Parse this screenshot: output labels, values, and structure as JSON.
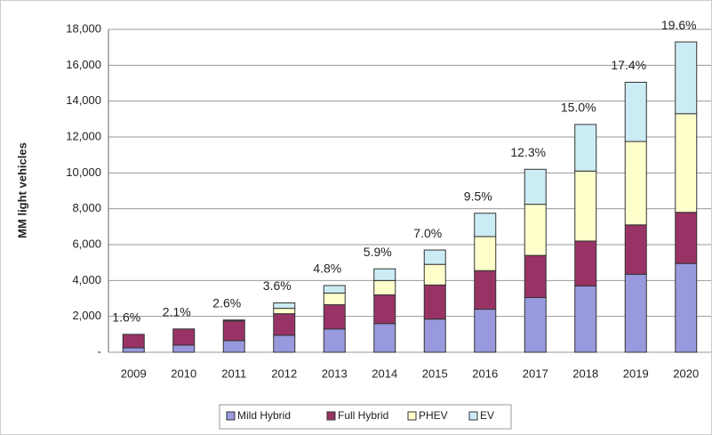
{
  "chart_data": {
    "type": "stacked_bar",
    "y_label": "MM light vehicles",
    "categories": [
      "2009",
      "2010",
      "2011",
      "2012",
      "2013",
      "2014",
      "2015",
      "2016",
      "2017",
      "2018",
      "2019",
      "2020"
    ],
    "series": [
      {
        "name": "Mild Hybrid",
        "color": "#9999dd",
        "values": [
          250,
          400,
          650,
          950,
          1300,
          1600,
          1850,
          2400,
          3050,
          3700,
          4350,
          4950
        ]
      },
      {
        "name": "Full Hybrid",
        "color": "#993366",
        "values": [
          750,
          900,
          1100,
          1200,
          1350,
          1600,
          1900,
          2150,
          2350,
          2500,
          2750,
          2850
        ]
      },
      {
        "name": "PHEV",
        "color": "#ffffcc",
        "values": [
          0,
          0,
          50,
          300,
          650,
          800,
          1150,
          1900,
          2850,
          3900,
          4650,
          5500
        ]
      },
      {
        "name": "EV",
        "color": "#ccecf5",
        "values": [
          0,
          0,
          0,
          300,
          420,
          650,
          800,
          1300,
          1950,
          2600,
          3300,
          4000
        ]
      }
    ],
    "annotations": [
      "1.6%",
      "2.1%",
      "2.6%",
      "3.6%",
      "4.8%",
      "5.9%",
      "7.0%",
      "9.5%",
      "12.3%",
      "15.0%",
      "17.4%",
      "19.6%"
    ],
    "ylim": [
      0,
      18000
    ],
    "yticks": [
      {
        "value": 0,
        "label": "-"
      },
      {
        "value": 2000,
        "label": "2,000"
      },
      {
        "value": 4000,
        "label": "4,000"
      },
      {
        "value": 6000,
        "label": "6,000"
      },
      {
        "value": 8000,
        "label": "8,000"
      },
      {
        "value": 10000,
        "label": "10,000"
      },
      {
        "value": 12000,
        "label": "12,000"
      },
      {
        "value": 14000,
        "label": "14,000"
      },
      {
        "value": 16000,
        "label": "16,000"
      },
      {
        "value": 18000,
        "label": "18,000"
      }
    ],
    "grid": true,
    "legend": "bottom"
  }
}
